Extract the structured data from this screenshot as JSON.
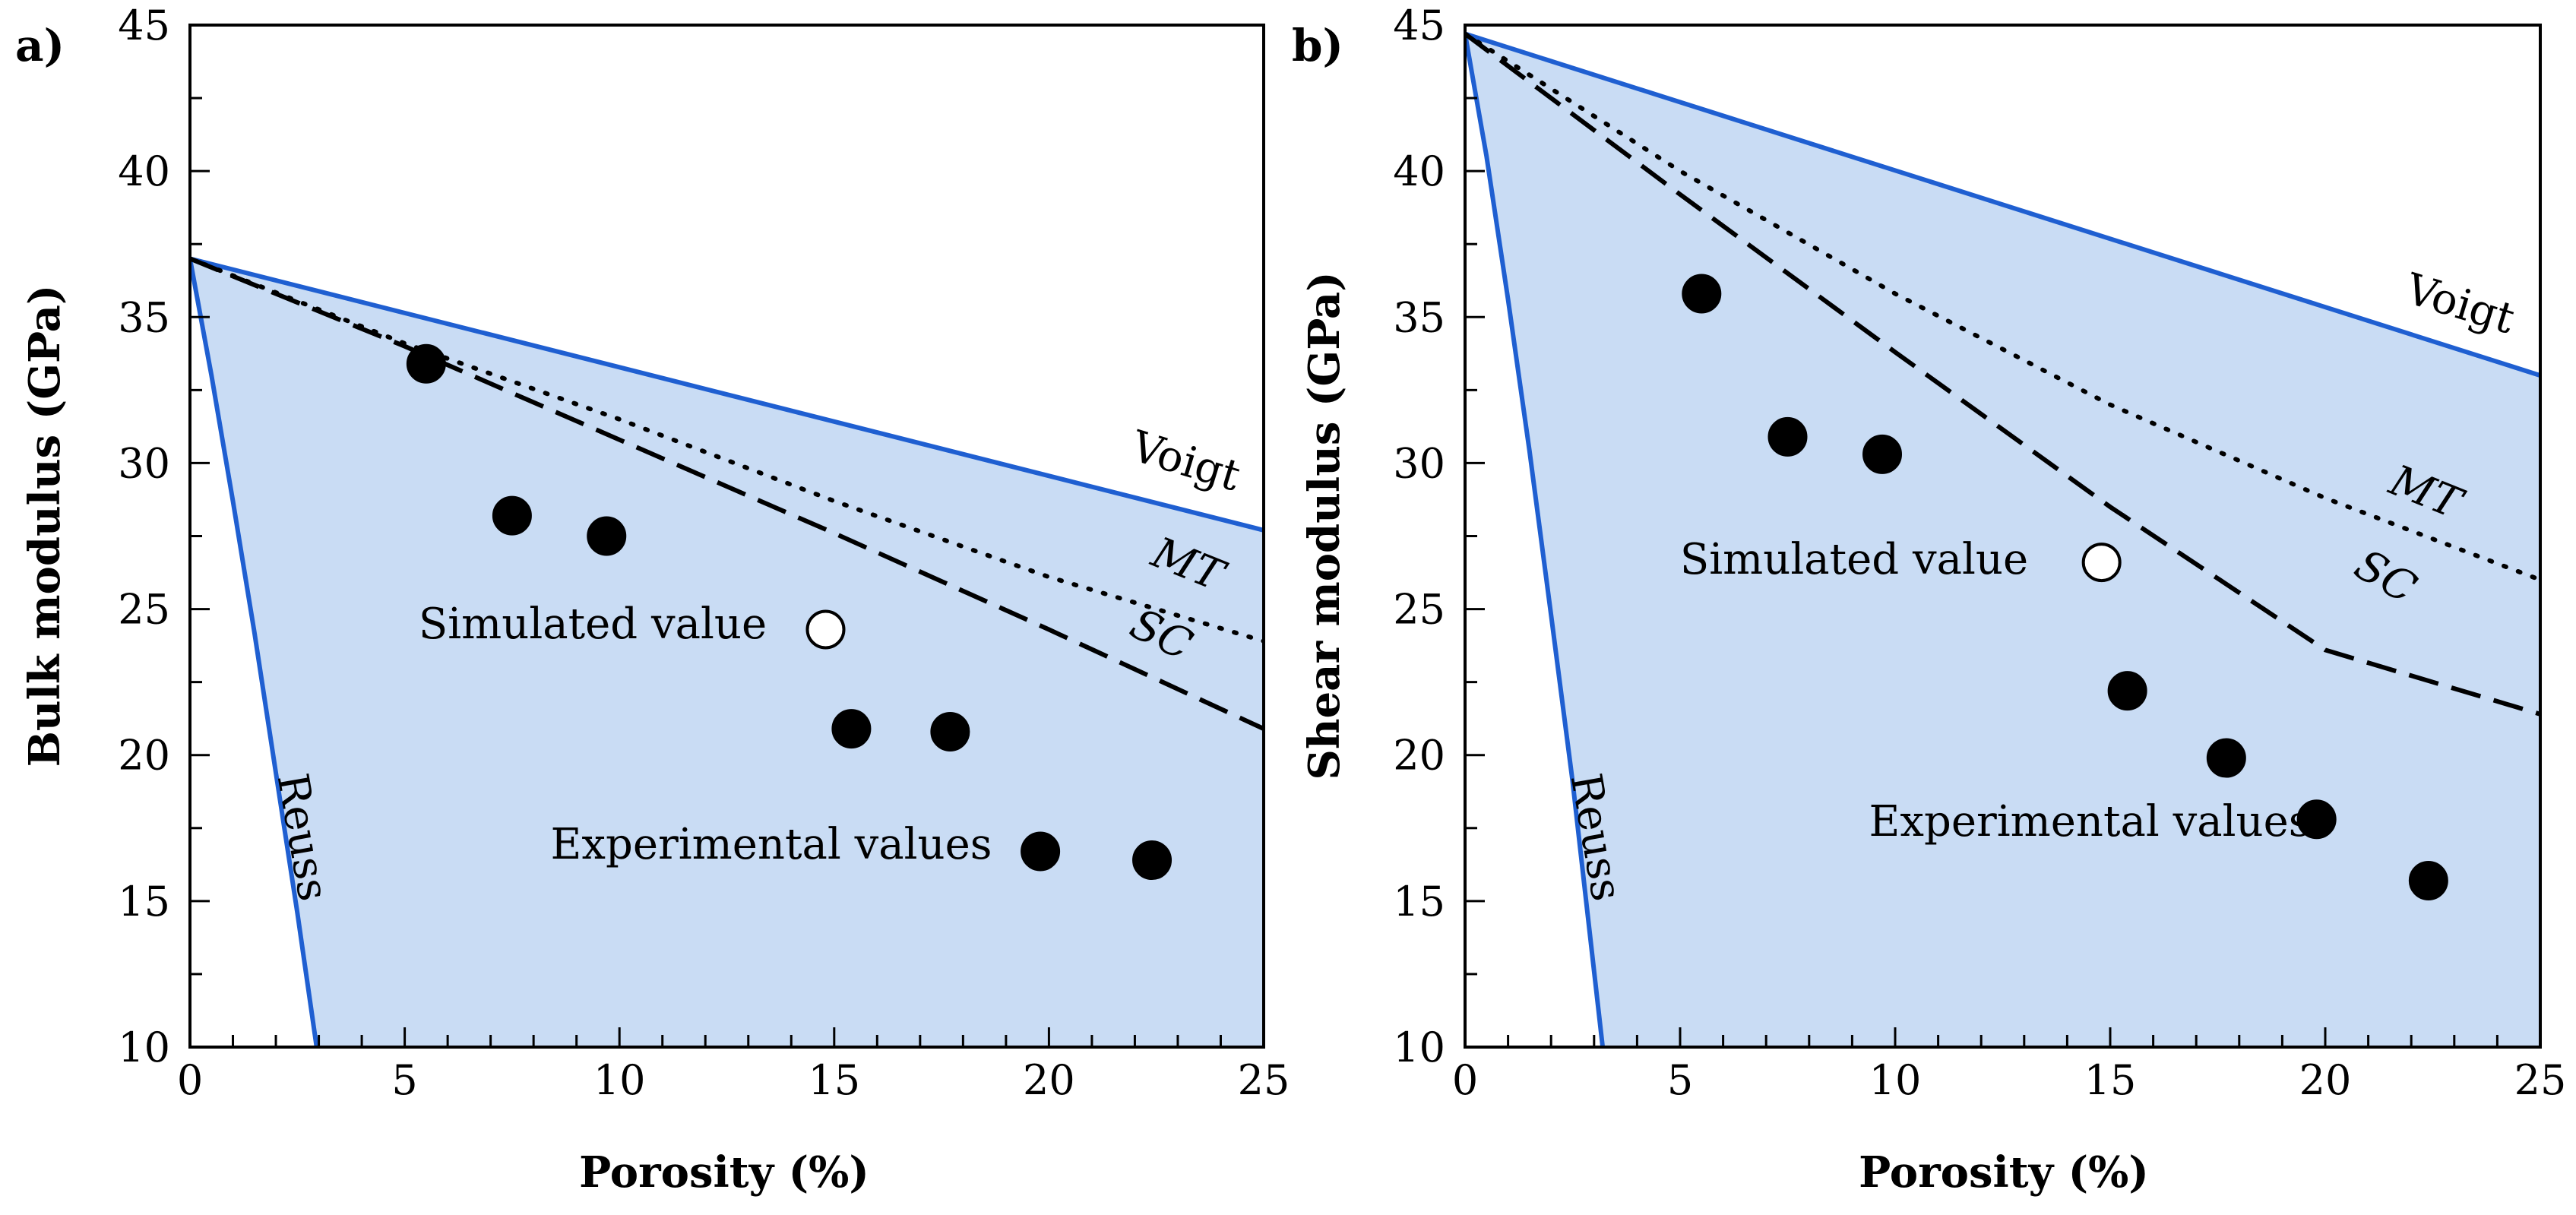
{
  "chart_data": [
    {
      "type": "scatter",
      "panel_label": "a)",
      "xlabel": "Porosity (%)",
      "ylabel": "Bulk modulus (GPa)",
      "xlim": [
        0,
        25
      ],
      "ylim": [
        10,
        45
      ],
      "x_ticks": [
        0,
        5,
        10,
        15,
        20,
        25
      ],
      "y_ticks": [
        10,
        15,
        20,
        25,
        30,
        35,
        40,
        45
      ],
      "x_minor_step": 1,
      "y_minor_step": 2.5,
      "grid": false,
      "series": [
        {
          "name": "Voigt",
          "kind": "line",
          "style": "solid",
          "color": "#1f5fd1",
          "x": [
            0,
            25
          ],
          "y": [
            37,
            27.7
          ]
        },
        {
          "name": "Reuss",
          "kind": "line",
          "style": "solid",
          "color": "#1f5fd1",
          "x": [
            0,
            0.5,
            1,
            1.5,
            2,
            2.5,
            2.95
          ],
          "y": [
            37,
            33,
            28.7,
            24.2,
            19.4,
            14.6,
            10
          ]
        },
        {
          "name": "MT",
          "kind": "line",
          "style": "dotted",
          "color": "#000000",
          "x": [
            0,
            5,
            10,
            15,
            20,
            25
          ],
          "y": [
            37,
            34.1,
            31.5,
            28.7,
            26.1,
            23.9
          ]
        },
        {
          "name": "SC",
          "kind": "line",
          "style": "dashed",
          "color": "#000000",
          "x": [
            0,
            5,
            10,
            15,
            20,
            25
          ],
          "y": [
            37,
            34,
            30.8,
            27.6,
            24.3,
            20.9
          ]
        },
        {
          "name": "Experimental values",
          "kind": "points",
          "filled": true,
          "x": [
            5.5,
            7.5,
            9.7,
            15.4,
            17.7,
            19.8,
            22.4
          ],
          "y": [
            33.4,
            28.2,
            27.5,
            20.9,
            20.8,
            16.7,
            16.4
          ]
        },
        {
          "name": "Simulated value",
          "kind": "points",
          "filled": false,
          "x": [
            14.8
          ],
          "y": [
            24.3
          ]
        }
      ],
      "annotations": {
        "voigt": "Voigt",
        "reuss": "Reuss",
        "mt": "MT",
        "sc": "SC",
        "simulated": "Simulated value",
        "experimental": "Experimental values"
      },
      "colors": {
        "fill": "#c9dcf4",
        "bound": "#1f5fd1",
        "curve": "#000000"
      }
    },
    {
      "type": "scatter",
      "panel_label": "b)",
      "xlabel": "Porosity (%)",
      "ylabel": "Shear modulus (GPa)",
      "xlim": [
        0,
        25
      ],
      "ylim": [
        10,
        45
      ],
      "x_ticks": [
        0,
        5,
        10,
        15,
        20,
        25
      ],
      "y_ticks": [
        10,
        15,
        20,
        25,
        30,
        35,
        40,
        45
      ],
      "x_minor_step": 1,
      "y_minor_step": 2.5,
      "grid": false,
      "series": [
        {
          "name": "Voigt",
          "kind": "line",
          "style": "solid",
          "color": "#1f5fd1",
          "x": [
            0,
            25
          ],
          "y": [
            44.7,
            33
          ]
        },
        {
          "name": "Reuss",
          "kind": "line",
          "style": "solid",
          "color": "#1f5fd1",
          "x": [
            0,
            0.5,
            1,
            1.5,
            2,
            2.5,
            3.2
          ],
          "y": [
            44.7,
            40.5,
            35.6,
            30.4,
            24.8,
            19.1,
            10
          ]
        },
        {
          "name": "MT",
          "kind": "line",
          "style": "dotted",
          "color": "#000000",
          "x": [
            0,
            5,
            10,
            15,
            20,
            25
          ],
          "y": [
            44.7,
            40,
            35.8,
            32,
            28.8,
            26
          ]
        },
        {
          "name": "SC",
          "kind": "line",
          "style": "dashed",
          "color": "#000000",
          "x": [
            0,
            5,
            10,
            15,
            20,
            25
          ],
          "y": [
            44.7,
            39.2,
            33.8,
            28.5,
            23.6,
            21.4
          ]
        },
        {
          "name": "Experimental values",
          "kind": "points",
          "filled": true,
          "x": [
            5.5,
            7.5,
            9.7,
            15.4,
            17.7,
            19.8,
            22.4
          ],
          "y": [
            35.8,
            30.9,
            30.3,
            22.2,
            19.9,
            17.8,
            15.7
          ]
        },
        {
          "name": "Simulated value",
          "kind": "points",
          "filled": false,
          "x": [
            14.8
          ],
          "y": [
            26.6
          ]
        }
      ],
      "annotations": {
        "voigt": "Voigt",
        "reuss": "Reuss",
        "mt": "MT",
        "sc": "SC",
        "simulated": "Simulated value",
        "experimental": "Experimental values"
      },
      "colors": {
        "fill": "#c9dcf4",
        "bound": "#1f5fd1",
        "curve": "#000000"
      }
    }
  ]
}
